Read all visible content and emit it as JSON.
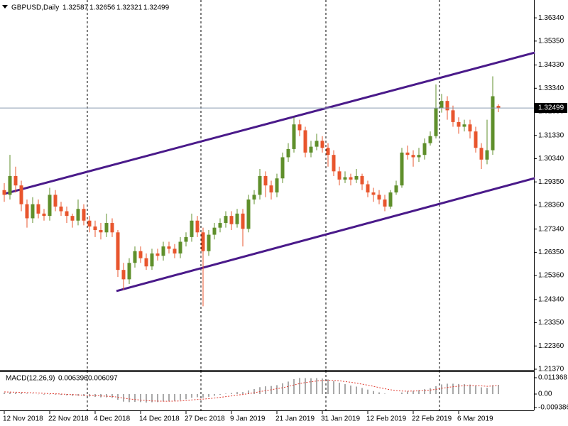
{
  "chart_data": [
    {
      "type": "candlestick",
      "title": "GBPUSD,Daily",
      "categories": [
        "12 Nov 2018",
        null,
        null,
        null,
        null,
        null,
        null,
        null,
        "22 Nov 2018",
        null,
        null,
        null,
        null,
        null,
        null,
        null,
        "4 Dec 2018",
        null,
        null,
        null,
        null,
        null,
        null,
        null,
        "14 Dec 2018",
        null,
        null,
        null,
        null,
        null,
        null,
        null,
        "27 Dec 2018",
        null,
        null,
        null,
        null,
        null,
        null,
        null,
        "9 Jan 2019",
        null,
        null,
        null,
        null,
        null,
        null,
        null,
        "21 Jan 2019",
        null,
        null,
        null,
        null,
        null,
        null,
        null,
        "31 Jan 2019",
        null,
        null,
        null,
        null,
        null,
        null,
        null,
        "12 Feb 2019",
        null,
        null,
        null,
        null,
        null,
        null,
        null,
        "22 Feb 2019",
        null,
        null,
        null,
        null,
        null,
        null,
        null,
        "6 Mar 2019",
        null,
        null,
        null,
        null,
        null,
        null,
        null
      ],
      "open": [
        1.29,
        1.288,
        1.296,
        1.292,
        1.284,
        1.278,
        1.284,
        1.28,
        1.279,
        1.288,
        1.283,
        1.281,
        1.279,
        1.277,
        1.282,
        1.277,
        1.2745,
        1.273,
        1.272,
        1.276,
        1.272,
        1.256,
        1.252,
        1.259,
        1.264,
        1.261,
        1.2575,
        1.263,
        1.262,
        1.266,
        1.265,
        1.263,
        1.268,
        1.27,
        1.277,
        1.272,
        1.264,
        1.271,
        1.274,
        1.276,
        1.279,
        1.2755,
        1.28,
        1.2735,
        1.286,
        1.288,
        1.296,
        1.292,
        1.289,
        1.295,
        1.304,
        1.3075,
        1.318,
        1.3155,
        1.306,
        1.3085,
        1.311,
        1.308,
        1.305,
        1.298,
        1.2945,
        1.2955,
        1.2945,
        1.296,
        1.2925,
        1.289,
        1.288,
        1.286,
        1.283,
        1.289,
        1.292,
        1.306,
        1.305,
        1.304,
        1.305,
        1.31,
        1.313,
        1.325,
        1.328,
        1.324,
        1.319,
        1.317,
        1.318,
        1.315,
        1.308,
        1.303,
        1.307,
        1.32587
      ],
      "high": [
        1.293,
        1.305,
        1.3,
        1.294,
        1.286,
        1.287,
        1.286,
        1.282,
        1.291,
        1.29,
        1.285,
        1.283,
        1.28,
        1.286,
        1.284,
        1.279,
        1.277,
        1.276,
        1.28,
        1.278,
        1.273,
        1.259,
        1.261,
        1.266,
        1.266,
        1.263,
        1.265,
        1.265,
        1.268,
        1.268,
        1.267,
        1.27,
        1.272,
        1.28,
        1.279,
        1.274,
        1.273,
        1.276,
        1.278,
        1.281,
        1.281,
        1.282,
        1.282,
        1.288,
        1.29,
        1.299,
        1.298,
        1.294,
        1.297,
        1.306,
        1.31,
        1.321,
        1.32,
        1.317,
        1.311,
        1.314,
        1.313,
        1.31,
        1.307,
        1.3,
        1.298,
        1.297,
        1.299,
        1.297,
        1.294,
        1.291,
        1.29,
        1.288,
        1.29,
        1.294,
        1.308,
        1.309,
        1.307,
        1.308,
        1.312,
        1.315,
        1.335,
        1.331,
        1.33,
        1.326,
        1.321,
        1.32,
        1.32,
        1.317,
        1.31,
        1.32,
        1.3385,
        1.32656
      ],
      "low": [
        1.285,
        1.286,
        1.289,
        1.281,
        1.274,
        1.276,
        1.278,
        1.277,
        1.277,
        1.281,
        1.279,
        1.276,
        1.274,
        1.275,
        1.275,
        1.272,
        1.27,
        1.269,
        1.27,
        1.27,
        1.253,
        1.2475,
        1.25,
        1.257,
        1.259,
        1.256,
        1.256,
        1.26,
        1.26,
        1.263,
        1.261,
        1.261,
        1.266,
        1.268,
        1.27,
        1.2405,
        1.262,
        1.269,
        1.272,
        1.274,
        1.273,
        1.274,
        1.266,
        1.272,
        1.284,
        1.286,
        1.287,
        1.286,
        1.287,
        1.293,
        1.302,
        1.306,
        1.313,
        1.304,
        1.304,
        1.307,
        1.306,
        1.3,
        1.296,
        1.292,
        1.293,
        1.292,
        1.293,
        1.29,
        1.287,
        1.285,
        1.284,
        1.281,
        1.282,
        1.288,
        1.291,
        1.303,
        1.3,
        1.302,
        1.303,
        1.309,
        1.312,
        1.323,
        1.32,
        1.317,
        1.314,
        1.315,
        1.312,
        1.306,
        1.299,
        1.301,
        1.305,
        1.32321
      ],
      "close": [
        1.288,
        1.296,
        1.292,
        1.284,
        1.278,
        1.284,
        1.28,
        1.279,
        1.288,
        1.283,
        1.281,
        1.279,
        1.277,
        1.282,
        1.277,
        1.2745,
        1.273,
        1.272,
        1.276,
        1.272,
        1.256,
        1.252,
        1.259,
        1.264,
        1.261,
        1.2575,
        1.263,
        1.262,
        1.266,
        1.265,
        1.263,
        1.268,
        1.27,
        1.277,
        1.272,
        1.264,
        1.271,
        1.274,
        1.276,
        1.279,
        1.2755,
        1.28,
        1.2735,
        1.286,
        1.288,
        1.296,
        1.292,
        1.289,
        1.295,
        1.304,
        1.3075,
        1.318,
        1.3155,
        1.306,
        1.3085,
        1.311,
        1.308,
        1.305,
        1.298,
        1.2945,
        1.2955,
        1.2945,
        1.296,
        1.2925,
        1.289,
        1.288,
        1.286,
        1.283,
        1.289,
        1.292,
        1.306,
        1.305,
        1.304,
        1.305,
        1.31,
        1.313,
        1.325,
        1.328,
        1.324,
        1.319,
        1.317,
        1.318,
        1.315,
        1.308,
        1.303,
        1.307,
        1.33,
        1.32499
      ],
      "ylim": [
        1.2134,
        1.371
      ],
      "yticks": [
        {
          "value": 1.3634,
          "label": "1.36340"
        },
        {
          "value": 1.3535,
          "label": "1.35350"
        },
        {
          "value": 1.3433,
          "label": "1.34330"
        },
        {
          "value": 1.3334,
          "label": "1.33340"
        },
        {
          "value": 1.3235,
          "label": "1.32350"
        },
        {
          "value": 1.3133,
          "label": "1.31330"
        },
        {
          "value": 1.3034,
          "label": "1.30340"
        },
        {
          "value": 1.2935,
          "label": "1.29350"
        },
        {
          "value": 1.2836,
          "label": "1.28360"
        },
        {
          "value": 1.2734,
          "label": "1.27340"
        },
        {
          "value": 1.2635,
          "label": "1.26350"
        },
        {
          "value": 1.2536,
          "label": "1.25360"
        },
        {
          "value": 1.2434,
          "label": "1.24340"
        },
        {
          "value": 1.2335,
          "label": "1.23350"
        },
        {
          "value": 1.2236,
          "label": "1.22360"
        },
        {
          "value": 1.2137,
          "label": "1.21370"
        }
      ],
      "up_color": "#5f8f2b",
      "down_color": "#e8552d",
      "trendlines": [
        {
          "x": [
            0,
            93.4
          ],
          "y": [
            1.2884,
            1.3486
          ]
        },
        {
          "x": [
            19.75,
            93.4
          ],
          "y": [
            1.247,
            1.2951
          ]
        }
      ],
      "trendline_color": "#4a1a8a",
      "price_line_color": "#8a9bb0"
    },
    {
      "type": "macd",
      "title": "MACD(12,26,9)",
      "values": [
        0.001,
        0.0012,
        0.0011,
        0.0008,
        0.0003,
        0.0002,
        -0.0001,
        -0.0004,
        -0.0002,
        -0.0004,
        -0.0006,
        -0.0009,
        -0.0012,
        -0.0012,
        -0.0014,
        -0.0017,
        -0.002,
        -0.0023,
        -0.0023,
        -0.0026,
        -0.004,
        -0.0053,
        -0.0056,
        -0.0055,
        -0.0056,
        -0.0059,
        -0.0057,
        -0.0056,
        -0.0052,
        -0.0049,
        -0.0047,
        -0.0042,
        -0.0036,
        -0.0026,
        -0.0022,
        -0.0025,
        -0.0019,
        -0.0012,
        -0.0005,
        0.0003,
        0.0007,
        0.0014,
        0.0014,
        0.0025,
        0.0035,
        0.0048,
        0.0054,
        0.0056,
        0.0062,
        0.0075,
        0.0087,
        0.0104,
        0.0112,
        0.0111,
        0.011,
        0.0111,
        0.0108,
        0.0102,
        0.0091,
        0.0079,
        0.0069,
        0.0059,
        0.0052,
        0.0042,
        0.0031,
        0.0021,
        0.0012,
        0.0003,
        0.0,
        0.0,
        0.0011,
        0.0018,
        0.0023,
        0.0027,
        0.0034,
        0.0041,
        0.0055,
        0.0067,
        0.0072,
        0.0072,
        0.007,
        0.0069,
        0.0066,
        0.0058,
        0.0047,
        0.0043,
        0.0062,
        0.006396
      ],
      "signal": [
        0.0015,
        0.0014,
        0.0013,
        0.0012,
        0.001,
        0.0009,
        0.0007,
        0.0005,
        0.0003,
        0.0002,
        0.0,
        -0.0002,
        -0.0004,
        -0.0006,
        -0.0007,
        -0.0009,
        -0.0011,
        -0.0013,
        -0.0015,
        -0.0017,
        -0.0022,
        -0.0028,
        -0.0034,
        -0.0038,
        -0.0042,
        -0.0045,
        -0.0048,
        -0.0049,
        -0.005,
        -0.005,
        -0.0049,
        -0.0048,
        -0.0045,
        -0.0041,
        -0.0038,
        -0.0035,
        -0.0032,
        -0.0028,
        -0.0023,
        -0.0018,
        -0.0013,
        -0.0007,
        -0.0003,
        0.0003,
        0.0009,
        0.0017,
        0.0024,
        0.003,
        0.0037,
        0.0044,
        0.0053,
        0.0063,
        0.0073,
        0.008,
        0.0086,
        0.0091,
        0.0094,
        0.0096,
        0.0095,
        0.0092,
        0.0087,
        0.0082,
        0.0076,
        0.0069,
        0.0062,
        0.0054,
        0.0045,
        0.0037,
        0.003,
        0.0024,
        0.0021,
        0.002,
        0.0021,
        0.0022,
        0.0025,
        0.0028,
        0.0033,
        0.004,
        0.0046,
        0.0051,
        0.0055,
        0.0058,
        0.0059,
        0.0059,
        0.0057,
        0.0054,
        0.0056,
        0.006097
      ],
      "ylim": [
        -0.01137,
        0.01582
      ],
      "yticks": [
        0.011368,
        {
          "value": 0,
          "label": "0.00"
        },
        -0.009386
      ],
      "color": "#8c8c8c",
      "signal_color": "#e03c31"
    }
  ]
}
